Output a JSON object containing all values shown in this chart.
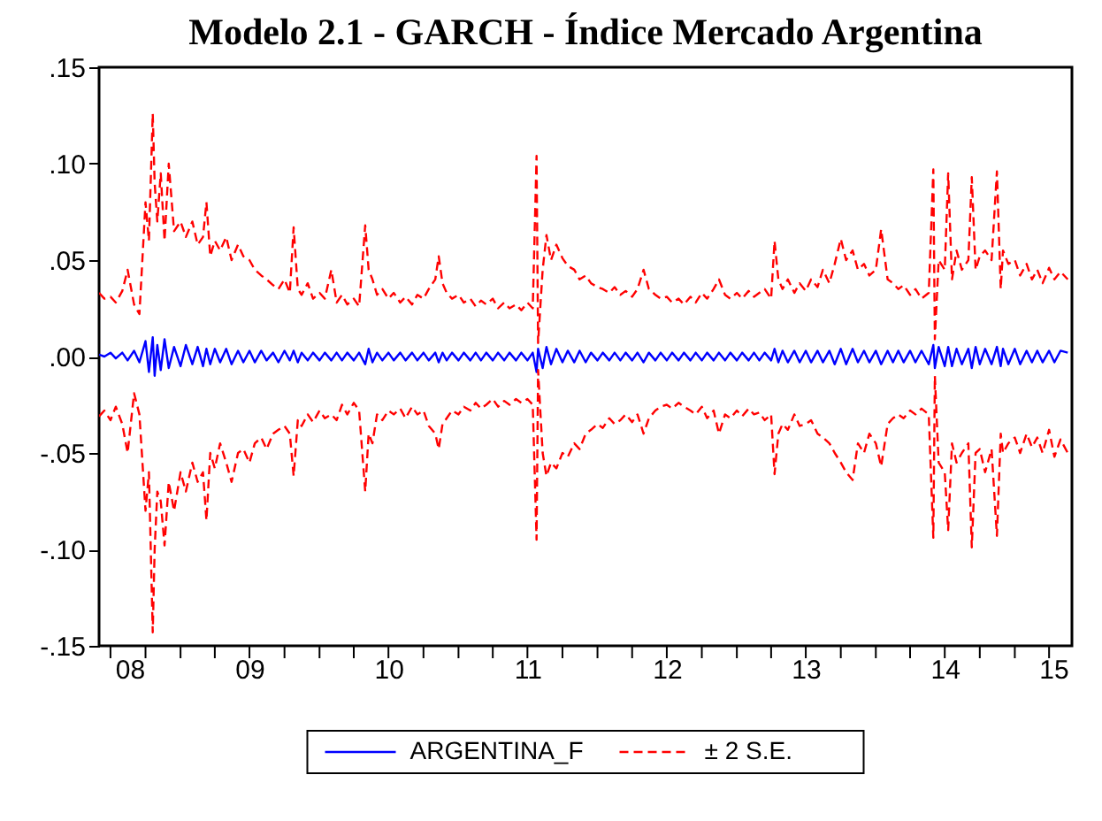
{
  "chart_data": {
    "type": "line",
    "title": "Modelo 2.1 - GARCH - Índice Mercado Argentina",
    "x": [
      "2008-06-01",
      "2008-06-15",
      "2008-07-01",
      "2008-07-15",
      "2008-08-01",
      "2008-08-15",
      "2008-09-01",
      "2008-09-15",
      "2008-10-01",
      "2008-10-10",
      "2008-10-20",
      "2008-10-25",
      "2008-11-01",
      "2008-11-10",
      "2008-11-20",
      "2008-12-01",
      "2008-12-15",
      "2009-01-01",
      "2009-01-15",
      "2009-02-01",
      "2009-02-15",
      "2009-03-01",
      "2009-03-10",
      "2009-03-20",
      "2009-04-01",
      "2009-04-15",
      "2009-05-01",
      "2009-05-15",
      "2009-06-01",
      "2009-06-15",
      "2009-07-01",
      "2009-07-15",
      "2009-08-01",
      "2009-08-15",
      "2009-09-01",
      "2009-09-15",
      "2009-10-01",
      "2009-10-15",
      "2009-10-25",
      "2009-11-05",
      "2009-11-15",
      "2009-12-01",
      "2009-12-15",
      "2010-01-01",
      "2010-01-15",
      "2010-02-01",
      "2010-02-15",
      "2010-03-01",
      "2010-03-15",
      "2010-04-01",
      "2010-04-15",
      "2010-05-01",
      "2010-05-10",
      "2010-05-20",
      "2010-06-01",
      "2010-06-15",
      "2010-07-01",
      "2010-07-15",
      "2010-08-01",
      "2010-08-15",
      "2010-09-01",
      "2010-09-15",
      "2010-10-01",
      "2010-10-15",
      "2010-11-01",
      "2010-11-10",
      "2010-11-20",
      "2010-12-01",
      "2010-12-15",
      "2011-01-01",
      "2011-01-15",
      "2011-02-01",
      "2011-02-15",
      "2011-03-01",
      "2011-03-15",
      "2011-04-01",
      "2011-04-15",
      "2011-05-01",
      "2011-05-15",
      "2011-06-01",
      "2011-06-15",
      "2011-07-01",
      "2011-07-15",
      "2011-07-25",
      "2011-07-29",
      "2011-08-10",
      "2011-08-20",
      "2011-09-01",
      "2011-09-15",
      "2011-10-01",
      "2011-10-15",
      "2011-11-01",
      "2011-11-15",
      "2011-12-01",
      "2011-12-15",
      "2012-01-01",
      "2012-01-15",
      "2012-02-01",
      "2012-02-15",
      "2012-03-01",
      "2012-03-15",
      "2012-04-01",
      "2012-04-15",
      "2012-05-01",
      "2012-05-15",
      "2012-06-01",
      "2012-06-15",
      "2012-07-01",
      "2012-07-15",
      "2012-08-01",
      "2012-08-15",
      "2012-09-01",
      "2012-09-15",
      "2012-10-01",
      "2012-10-15",
      "2012-11-01",
      "2012-11-15",
      "2012-12-01",
      "2012-12-15",
      "2013-01-01",
      "2013-01-15",
      "2013-02-01",
      "2013-02-15",
      "2013-03-01",
      "2013-03-15",
      "2013-04-01",
      "2013-04-10",
      "2013-04-20",
      "2013-05-01",
      "2013-05-15",
      "2013-06-01",
      "2013-06-15",
      "2013-07-01",
      "2013-07-15",
      "2013-08-01",
      "2013-08-15",
      "2013-09-01",
      "2013-09-15",
      "2013-10-01",
      "2013-10-15",
      "2013-11-01",
      "2013-11-15",
      "2013-12-01",
      "2013-12-15",
      "2014-01-01",
      "2014-01-15",
      "2014-02-01",
      "2014-02-15",
      "2014-03-01",
      "2014-03-15",
      "2014-04-01",
      "2014-04-15",
      "2014-05-01",
      "2014-05-20",
      "2014-06-01",
      "2014-06-05",
      "2014-06-15",
      "2014-07-01",
      "2014-07-10",
      "2014-07-20",
      "2014-08-01",
      "2014-08-15",
      "2014-09-01",
      "2014-09-10",
      "2014-09-20",
      "2014-10-01",
      "2014-10-15",
      "2014-11-01",
      "2014-11-15",
      "2014-11-25",
      "2014-12-01",
      "2014-12-15",
      "2015-01-01",
      "2015-01-15",
      "2015-02-01",
      "2015-02-15",
      "2015-03-01",
      "2015-03-15",
      "2015-04-01",
      "2015-04-15",
      "2015-05-01",
      "2015-05-20"
    ],
    "series": [
      {
        "name": "ARGENTINA_F",
        "color": "#0000ff",
        "line_style": "solid",
        "values": [
          0.001,
          0.0,
          0.002,
          -0.001,
          0.002,
          -0.002,
          0.003,
          -0.003,
          0.008,
          -0.008,
          0.01,
          -0.01,
          0.006,
          -0.007,
          0.009,
          -0.006,
          0.005,
          -0.005,
          0.006,
          -0.004,
          0.005,
          -0.005,
          0.004,
          -0.004,
          0.004,
          -0.003,
          0.004,
          -0.004,
          0.003,
          -0.003,
          0.003,
          -0.003,
          0.003,
          -0.002,
          0.002,
          -0.003,
          0.003,
          -0.002,
          0.003,
          -0.003,
          0.002,
          -0.002,
          0.002,
          -0.002,
          0.002,
          -0.002,
          0.002,
          -0.002,
          0.002,
          -0.002,
          0.002,
          -0.004,
          0.004,
          -0.003,
          0.002,
          -0.002,
          0.002,
          -0.002,
          0.002,
          -0.002,
          0.002,
          -0.002,
          0.002,
          -0.002,
          0.002,
          -0.003,
          0.002,
          -0.002,
          0.002,
          -0.002,
          0.002,
          -0.002,
          0.002,
          -0.002,
          0.002,
          -0.002,
          0.002,
          -0.002,
          0.002,
          -0.002,
          0.002,
          -0.002,
          0.002,
          -0.008,
          0.004,
          -0.006,
          0.005,
          -0.004,
          0.004,
          -0.003,
          0.003,
          -0.003,
          0.003,
          -0.003,
          0.002,
          -0.002,
          0.002,
          -0.002,
          0.002,
          -0.002,
          0.002,
          -0.002,
          0.002,
          -0.003,
          0.002,
          -0.002,
          0.002,
          -0.002,
          0.002,
          -0.002,
          0.002,
          -0.002,
          0.002,
          -0.002,
          0.002,
          -0.002,
          0.002,
          -0.002,
          0.002,
          -0.002,
          0.002,
          -0.002,
          0.002,
          -0.002,
          0.002,
          -0.002,
          0.004,
          -0.003,
          0.003,
          -0.003,
          0.003,
          -0.003,
          0.003,
          -0.003,
          0.003,
          -0.003,
          0.003,
          -0.004,
          0.004,
          -0.004,
          0.004,
          -0.003,
          0.003,
          -0.003,
          0.003,
          -0.004,
          0.003,
          -0.003,
          0.003,
          -0.003,
          0.003,
          -0.003,
          0.003,
          -0.004,
          0.006,
          -0.006,
          0.005,
          -0.005,
          0.005,
          -0.005,
          0.004,
          -0.004,
          0.004,
          -0.006,
          0.005,
          -0.004,
          0.004,
          -0.004,
          0.005,
          -0.005,
          0.004,
          -0.004,
          0.004,
          -0.004,
          0.003,
          -0.003,
          0.003,
          -0.003,
          0.003,
          -0.003,
          0.003,
          0.002
        ]
      },
      {
        "name": "± 2 S.E.",
        "color": "#ff0000",
        "line_style": "dashed",
        "values": [
          0.033,
          0.03,
          0.031,
          0.028,
          0.034,
          0.045,
          0.027,
          0.022,
          0.08,
          0.06,
          0.126,
          0.09,
          0.07,
          0.095,
          0.06,
          0.1,
          0.065,
          0.07,
          0.062,
          0.07,
          0.058,
          0.062,
          0.08,
          0.052,
          0.06,
          0.055,
          0.062,
          0.05,
          0.058,
          0.052,
          0.05,
          0.045,
          0.042,
          0.04,
          0.037,
          0.035,
          0.04,
          0.033,
          0.067,
          0.035,
          0.032,
          0.038,
          0.03,
          0.033,
          0.03,
          0.045,
          0.028,
          0.032,
          0.027,
          0.03,
          0.026,
          0.068,
          0.045,
          0.04,
          0.032,
          0.035,
          0.03,
          0.033,
          0.028,
          0.031,
          0.027,
          0.032,
          0.03,
          0.035,
          0.04,
          0.052,
          0.038,
          0.033,
          0.03,
          0.032,
          0.028,
          0.03,
          0.026,
          0.029,
          0.027,
          0.03,
          0.025,
          0.028,
          0.025,
          0.027,
          0.024,
          0.028,
          0.025,
          0.104,
          0.007,
          0.045,
          0.063,
          0.05,
          0.058,
          0.051,
          0.047,
          0.045,
          0.04,
          0.042,
          0.038,
          0.036,
          0.035,
          0.033,
          0.036,
          0.032,
          0.034,
          0.031,
          0.035,
          0.045,
          0.035,
          0.032,
          0.03,
          0.031,
          0.028,
          0.03,
          0.027,
          0.031,
          0.028,
          0.033,
          0.03,
          0.035,
          0.04,
          0.032,
          0.03,
          0.033,
          0.03,
          0.034,
          0.031,
          0.033,
          0.035,
          0.03,
          0.06,
          0.04,
          0.035,
          0.04,
          0.033,
          0.038,
          0.034,
          0.04,
          0.036,
          0.045,
          0.038,
          0.048,
          0.061,
          0.05,
          0.055,
          0.045,
          0.048,
          0.042,
          0.045,
          0.066,
          0.04,
          0.038,
          0.035,
          0.037,
          0.032,
          0.035,
          0.03,
          0.033,
          0.097,
          0.009,
          0.05,
          0.045,
          0.095,
          0.04,
          0.055,
          0.045,
          0.05,
          0.093,
          0.045,
          0.052,
          0.055,
          0.05,
          0.096,
          0.035,
          0.055,
          0.048,
          0.05,
          0.042,
          0.048,
          0.04,
          0.045,
          0.038,
          0.046,
          0.04,
          0.044,
          0.04
        ]
      },
      {
        "color": "#ff0000",
        "line_style": "dashed",
        "values": [
          -0.031,
          -0.028,
          -0.033,
          -0.026,
          -0.035,
          -0.05,
          -0.019,
          -0.03,
          -0.08,
          -0.06,
          -0.143,
          -0.1,
          -0.07,
          -0.075,
          -0.098,
          -0.065,
          -0.08,
          -0.06,
          -0.07,
          -0.055,
          -0.065,
          -0.06,
          -0.085,
          -0.05,
          -0.058,
          -0.045,
          -0.055,
          -0.065,
          -0.05,
          -0.048,
          -0.055,
          -0.045,
          -0.042,
          -0.048,
          -0.04,
          -0.038,
          -0.036,
          -0.04,
          -0.062,
          -0.033,
          -0.036,
          -0.03,
          -0.034,
          -0.028,
          -0.032,
          -0.03,
          -0.033,
          -0.025,
          -0.03,
          -0.024,
          -0.028,
          -0.07,
          -0.04,
          -0.045,
          -0.03,
          -0.033,
          -0.028,
          -0.03,
          -0.027,
          -0.032,
          -0.026,
          -0.03,
          -0.028,
          -0.036,
          -0.04,
          -0.048,
          -0.035,
          -0.032,
          -0.028,
          -0.03,
          -0.026,
          -0.028,
          -0.024,
          -0.027,
          -0.025,
          -0.022,
          -0.026,
          -0.023,
          -0.025,
          -0.022,
          -0.024,
          -0.022,
          -0.025,
          -0.095,
          -0.007,
          -0.05,
          -0.062,
          -0.055,
          -0.058,
          -0.05,
          -0.052,
          -0.045,
          -0.048,
          -0.04,
          -0.038,
          -0.035,
          -0.037,
          -0.032,
          -0.035,
          -0.033,
          -0.03,
          -0.034,
          -0.03,
          -0.04,
          -0.032,
          -0.028,
          -0.026,
          -0.025,
          -0.027,
          -0.024,
          -0.026,
          -0.028,
          -0.03,
          -0.026,
          -0.032,
          -0.028,
          -0.04,
          -0.03,
          -0.032,
          -0.028,
          -0.031,
          -0.027,
          -0.03,
          -0.029,
          -0.033,
          -0.03,
          -0.061,
          -0.04,
          -0.035,
          -0.038,
          -0.03,
          -0.036,
          -0.035,
          -0.033,
          -0.04,
          -0.042,
          -0.045,
          -0.05,
          -0.055,
          -0.06,
          -0.064,
          -0.045,
          -0.05,
          -0.04,
          -0.045,
          -0.057,
          -0.035,
          -0.032,
          -0.03,
          -0.032,
          -0.028,
          -0.03,
          -0.027,
          -0.03,
          -0.094,
          -0.01,
          -0.055,
          -0.06,
          -0.09,
          -0.045,
          -0.055,
          -0.05,
          -0.045,
          -0.099,
          -0.05,
          -0.048,
          -0.06,
          -0.048,
          -0.093,
          -0.04,
          -0.05,
          -0.045,
          -0.042,
          -0.05,
          -0.04,
          -0.047,
          -0.042,
          -0.05,
          -0.038,
          -0.052,
          -0.043,
          -0.05
        ]
      }
    ],
    "xlim": [
      "2008-06-01",
      "2015-05-31"
    ],
    "xticks": [
      {
        "value": "2008-08-20",
        "label": "08"
      },
      {
        "value": "2009-07-01",
        "label": "09"
      },
      {
        "value": "2010-07-01",
        "label": "10"
      },
      {
        "value": "2011-07-01",
        "label": "11"
      },
      {
        "value": "2012-07-01",
        "label": "12"
      },
      {
        "value": "2013-07-01",
        "label": "13"
      },
      {
        "value": "2014-07-01",
        "label": "14"
      },
      {
        "value": "2015-04-12",
        "label": "15"
      },
      {
        "value": "2008-07-01",
        "label": null
      },
      {
        "value": "2008-10-01",
        "label": null
      },
      {
        "value": "2009-01-01",
        "label": null
      },
      {
        "value": "2009-04-01",
        "label": null
      },
      {
        "value": "2009-07-01",
        "label": null
      },
      {
        "value": "2009-10-01",
        "label": null
      },
      {
        "value": "2010-01-01",
        "label": null
      },
      {
        "value": "2010-04-01",
        "label": null
      },
      {
        "value": "2010-07-01",
        "label": null
      },
      {
        "value": "2010-10-01",
        "label": null
      },
      {
        "value": "2011-01-01",
        "label": null
      },
      {
        "value": "2011-04-01",
        "label": null
      },
      {
        "value": "2011-07-01",
        "label": null
      },
      {
        "value": "2011-10-01",
        "label": null
      },
      {
        "value": "2012-01-01",
        "label": null
      },
      {
        "value": "2012-04-01",
        "label": null
      },
      {
        "value": "2012-07-01",
        "label": null
      },
      {
        "value": "2012-10-01",
        "label": null
      },
      {
        "value": "2013-01-01",
        "label": null
      },
      {
        "value": "2013-04-01",
        "label": null
      },
      {
        "value": "2013-07-01",
        "label": null
      },
      {
        "value": "2013-10-01",
        "label": null
      },
      {
        "value": "2014-01-01",
        "label": null
      },
      {
        "value": "2014-04-01",
        "label": null
      },
      {
        "value": "2014-07-01",
        "label": null
      },
      {
        "value": "2014-10-01",
        "label": null
      },
      {
        "value": "2015-01-01",
        "label": null
      },
      {
        "value": "2015-04-01",
        "label": null
      }
    ],
    "ylim": [
      -0.15,
      0.15
    ],
    "yticks": [
      {
        "value": -0.15,
        "label": "-.15"
      },
      {
        "value": -0.1,
        "label": "-.10"
      },
      {
        "value": -0.05,
        "label": "-.05"
      },
      {
        "value": 0,
        "label": ".00"
      },
      {
        "value": 0.05,
        "label": ".05"
      },
      {
        "value": 0.1,
        "label": ".10"
      },
      {
        "value": 0.15,
        "label": ".15"
      }
    ],
    "grid": false,
    "legend": "bottom"
  }
}
